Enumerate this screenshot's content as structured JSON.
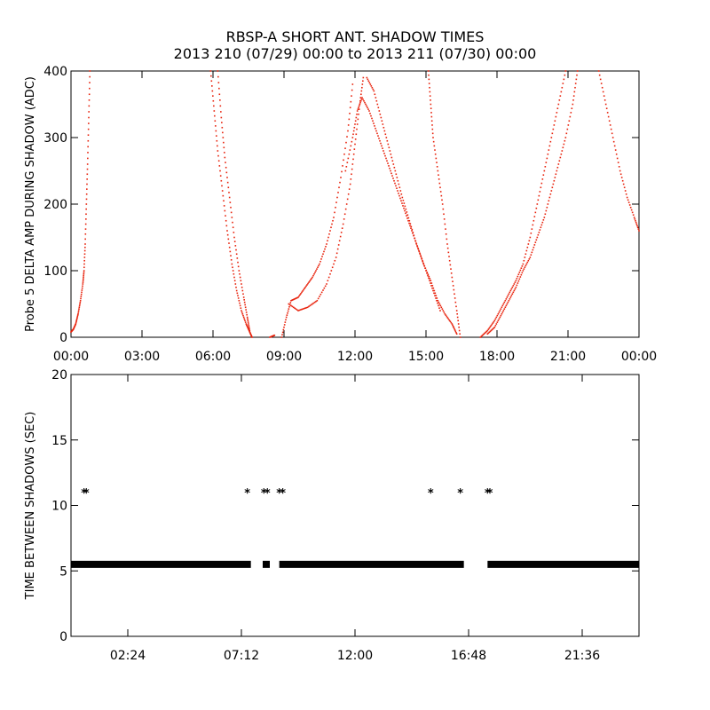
{
  "header": {
    "title": "RBSP-A SHORT ANT. SHADOW TIMES",
    "subtitle": "2013 210 (07/29) 00:00 to 2013 211 (07/30) 00:00"
  },
  "colors": {
    "top_points": "#e8220c",
    "bottom_points": "#000000",
    "axes": "#000000"
  },
  "chart_data": [
    {
      "type": "scatter",
      "ylabel": "Probe 5 DELTA AMP DURING SHADOW (ADC)",
      "xlabel": "",
      "xlim_hours": [
        0,
        24
      ],
      "ylim": [
        0,
        400
      ],
      "x_tick_labels": [
        "00:00",
        "03:00",
        "06:00",
        "09:00",
        "12:00",
        "15:00",
        "18:00",
        "21:00",
        "00:00"
      ],
      "x_tick_hours": [
        0,
        3,
        6,
        9,
        12,
        15,
        18,
        21,
        24
      ],
      "y_ticks": [
        0,
        100,
        200,
        300,
        400
      ],
      "point_color": "#e8220c",
      "series": [
        {
          "points": [
            [
              0.0,
              8
            ],
            [
              0.1,
              12
            ],
            [
              0.2,
              20
            ],
            [
              0.3,
              35
            ],
            [
              0.4,
              55
            ],
            [
              0.5,
              80
            ],
            [
              0.55,
              100
            ],
            [
              0.6,
              140
            ],
            [
              0.65,
              200
            ],
            [
              0.7,
              260
            ],
            [
              0.75,
              330
            ],
            [
              0.8,
              400
            ]
          ]
        },
        {
          "points": [
            [
              5.9,
              400
            ],
            [
              6.05,
              340
            ],
            [
              6.2,
              280
            ],
            [
              6.4,
              220
            ],
            [
              6.6,
              160
            ],
            [
              6.8,
              110
            ],
            [
              7.0,
              70
            ],
            [
              7.2,
              40
            ],
            [
              7.4,
              20
            ],
            [
              7.55,
              8
            ],
            [
              7.65,
              0
            ]
          ]
        },
        {
          "points": [
            [
              6.2,
              400
            ],
            [
              6.35,
              330
            ],
            [
              6.5,
              270
            ],
            [
              6.7,
              210
            ],
            [
              6.9,
              150
            ],
            [
              7.1,
              100
            ],
            [
              7.3,
              60
            ],
            [
              7.45,
              30
            ],
            [
              7.55,
              10
            ]
          ]
        },
        {
          "points": [
            [
              8.4,
              0
            ],
            [
              8.6,
              3
            ]
          ]
        },
        {
          "points": [
            [
              8.9,
              0
            ],
            [
              9.1,
              30
            ],
            [
              9.3,
              55
            ],
            [
              9.6,
              60
            ],
            [
              9.9,
              75
            ],
            [
              10.2,
              90
            ],
            [
              10.5,
              110
            ],
            [
              10.8,
              140
            ],
            [
              11.1,
              180
            ],
            [
              11.4,
              240
            ],
            [
              11.7,
              310
            ],
            [
              11.9,
              380
            ]
          ]
        },
        {
          "points": [
            [
              9.2,
              50
            ],
            [
              9.6,
              40
            ],
            [
              10.0,
              45
            ],
            [
              10.4,
              55
            ],
            [
              10.8,
              80
            ],
            [
              11.2,
              120
            ],
            [
              11.5,
              170
            ],
            [
              11.8,
              230
            ],
            [
              12.0,
              290
            ],
            [
              12.2,
              350
            ],
            [
              12.35,
              390
            ]
          ]
        },
        {
          "points": [
            [
              11.6,
              250
            ],
            [
              11.9,
              300
            ],
            [
              12.1,
              340
            ],
            [
              12.3,
              360
            ],
            [
              12.6,
              340
            ],
            [
              12.9,
              310
            ],
            [
              13.2,
              280
            ],
            [
              13.5,
              250
            ],
            [
              13.8,
              220
            ],
            [
              14.1,
              190
            ],
            [
              14.4,
              160
            ],
            [
              14.7,
              130
            ],
            [
              15.0,
              100
            ],
            [
              15.3,
              70
            ],
            [
              15.6,
              40
            ]
          ]
        },
        {
          "points": [
            [
              12.5,
              390
            ],
            [
              12.8,
              370
            ],
            [
              13.1,
              330
            ],
            [
              13.4,
              290
            ],
            [
              13.7,
              250
            ],
            [
              14.0,
              210
            ],
            [
              14.3,
              175
            ],
            [
              14.6,
              140
            ],
            [
              14.9,
              110
            ],
            [
              15.2,
              85
            ],
            [
              15.5,
              55
            ],
            [
              15.8,
              35
            ],
            [
              16.1,
              20
            ],
            [
              16.3,
              5
            ]
          ]
        },
        {
          "points": [
            [
              15.1,
              400
            ],
            [
              15.2,
              350
            ],
            [
              15.3,
              300
            ],
            [
              15.5,
              250
            ],
            [
              15.7,
              200
            ],
            [
              15.9,
              140
            ],
            [
              16.1,
              90
            ],
            [
              16.3,
              40
            ],
            [
              16.45,
              0
            ]
          ]
        },
        {
          "points": [
            [
              17.3,
              0
            ],
            [
              17.6,
              10
            ],
            [
              17.9,
              25
            ],
            [
              18.2,
              45
            ],
            [
              18.5,
              65
            ],
            [
              18.8,
              85
            ],
            [
              19.1,
              110
            ],
            [
              19.4,
              150
            ],
            [
              19.7,
              200
            ],
            [
              20.0,
              250
            ],
            [
              20.3,
              300
            ],
            [
              20.6,
              350
            ],
            [
              20.9,
              400
            ]
          ]
        },
        {
          "points": [
            [
              17.6,
              5
            ],
            [
              17.9,
              15
            ],
            [
              18.2,
              35
            ],
            [
              18.5,
              55
            ],
            [
              18.8,
              75
            ],
            [
              19.1,
              100
            ],
            [
              19.4,
              120
            ],
            [
              19.7,
              150
            ],
            [
              20.0,
              180
            ],
            [
              20.3,
              220
            ],
            [
              20.6,
              260
            ],
            [
              20.9,
              300
            ],
            [
              21.2,
              350
            ],
            [
              21.4,
              400
            ]
          ]
        },
        {
          "points": [
            [
              22.3,
              400
            ],
            [
              22.6,
              350
            ],
            [
              22.9,
              300
            ],
            [
              23.2,
              250
            ],
            [
              23.5,
              210
            ],
            [
              23.8,
              180
            ],
            [
              24.0,
              160
            ]
          ]
        }
      ]
    },
    {
      "type": "scatter",
      "ylabel": "TIME BETWEEN SHADOWS (SEC)",
      "xlabel": "",
      "xlim_hours": [
        0,
        24
      ],
      "ylim": [
        0,
        20
      ],
      "x_tick_labels": [
        "02:24",
        "07:12",
        "12:00",
        "16:48",
        "21:36"
      ],
      "x_tick_hours": [
        2.4,
        7.2,
        12.0,
        16.8,
        21.6
      ],
      "y_ticks": [
        0,
        5,
        10,
        15,
        20
      ],
      "point_color": "#000000",
      "series": [
        {
          "name": "",
          "bands": [
            {
              "y": 5.5,
              "from_hours": 0.0,
              "to_hours": 7.6
            },
            {
              "y": 5.5,
              "from_hours": 8.1,
              "to_hours": 8.4
            },
            {
              "y": 5.5,
              "from_hours": 8.8,
              "to_hours": 16.6
            },
            {
              "y": 5.5,
              "from_hours": 17.6,
              "to_hours": 24.0
            }
          ]
        },
        {
          "name": "",
          "points": [
            [
              0.55,
              11.0
            ],
            [
              0.65,
              11.0
            ],
            [
              7.45,
              11.0
            ],
            [
              8.15,
              11.0
            ],
            [
              8.3,
              11.0
            ],
            [
              8.8,
              11.0
            ],
            [
              8.95,
              11.0
            ],
            [
              15.2,
              11.0
            ],
            [
              16.45,
              11.0
            ],
            [
              17.6,
              11.0
            ],
            [
              17.7,
              11.0
            ]
          ]
        }
      ]
    }
  ]
}
